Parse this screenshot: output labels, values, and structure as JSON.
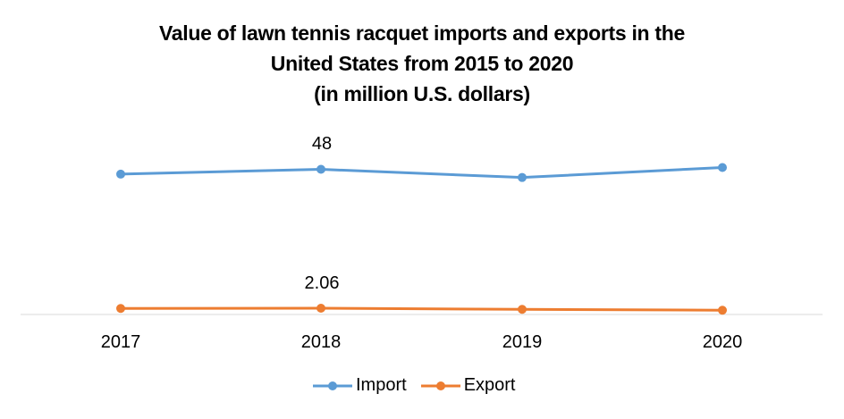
{
  "chart_data": {
    "type": "line",
    "title": "Value of lawn tennis racquet imports and exports in the United States from 2015 to 2020 (in million U.S. dollars)",
    "title_lines": [
      "Value of lawn tennis racquet imports and exports in the",
      "United States from 2015 to 2020",
      "(in million U.S. dollars)"
    ],
    "categories": [
      "2017",
      "2018",
      "2019",
      "2020"
    ],
    "series": [
      {
        "name": "Import",
        "color": "#5B9BD5",
        "values": [
          46.4,
          48,
          45.3,
          48.6
        ],
        "data_labels": {
          "1": "48"
        }
      },
      {
        "name": "Export",
        "color": "#ED7D31",
        "values": [
          2.0,
          2.06,
          1.7,
          1.4
        ],
        "data_labels": {
          "1": "2.06"
        }
      }
    ],
    "xlabel": "",
    "ylabel": "",
    "ylim": [
      0,
      50
    ],
    "grid": false,
    "y_axis_visible": false,
    "legend_position": "bottom"
  },
  "legend": {
    "import_label": "Import",
    "export_label": "Export"
  },
  "labels": {
    "import_2018": "48",
    "export_2018": "2.06"
  }
}
